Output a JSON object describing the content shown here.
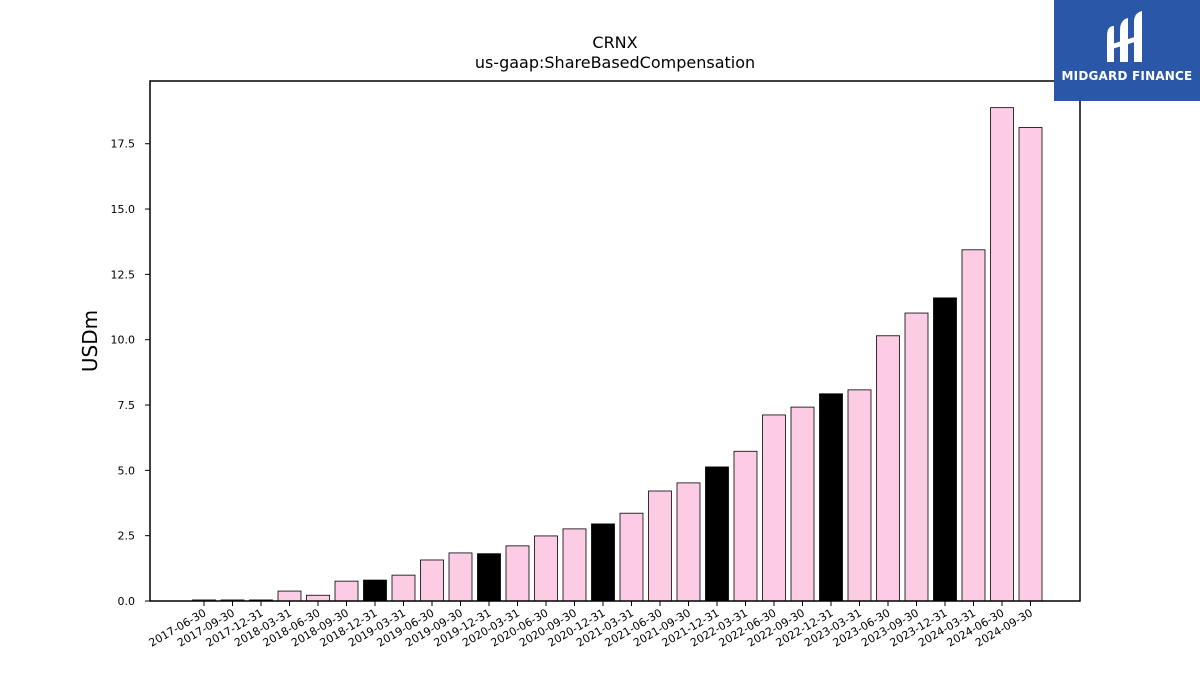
{
  "brand": {
    "name": "MIDGARD FINANCE",
    "bg_color": "#2a57a8"
  },
  "chart_data": {
    "type": "bar",
    "title": "CRNX",
    "subtitle": "us-gaap:ShareBasedCompensation",
    "xlabel": "",
    "ylabel": "USDm",
    "ylim": [
      0,
      19.9
    ],
    "yticks": [
      "0.0",
      "2.5",
      "5.0",
      "7.5",
      "10.0",
      "12.5",
      "15.0",
      "17.5"
    ],
    "ytick_values": [
      0,
      2.5,
      5,
      7.5,
      10,
      12.5,
      15,
      17.5
    ],
    "grid": false,
    "colors": {
      "quarter": "#fccce4",
      "year_end": "#000000",
      "edge": "#000000"
    },
    "categories": [
      "2017-06-30",
      "2017-09-30",
      "2017-12-31",
      "2018-03-31",
      "2018-06-30",
      "2018-09-30",
      "2018-12-31",
      "2019-03-31",
      "2019-06-30",
      "2019-09-30",
      "2019-12-31",
      "2020-03-31",
      "2020-06-30",
      "2020-09-30",
      "2020-12-31",
      "2021-03-31",
      "2021-06-30",
      "2021-09-30",
      "2021-12-31",
      "2022-03-31",
      "2022-06-30",
      "2022-09-30",
      "2022-12-31",
      "2023-03-31",
      "2023-06-30",
      "2023-09-30",
      "2023-12-31",
      "2024-03-31",
      "2024-06-30",
      "2024-09-30"
    ],
    "values": [
      0.04,
      0.04,
      0.04,
      0.38,
      0.22,
      0.76,
      0.8,
      0.99,
      1.57,
      1.84,
      1.81,
      2.11,
      2.49,
      2.76,
      2.95,
      3.36,
      4.21,
      4.52,
      5.13,
      5.73,
      7.12,
      7.42,
      7.93,
      8.08,
      10.15,
      11.02,
      11.6,
      13.44,
      18.88,
      18.12
    ],
    "year_end": [
      false,
      false,
      true,
      false,
      false,
      false,
      true,
      false,
      false,
      false,
      true,
      false,
      false,
      false,
      true,
      false,
      false,
      false,
      true,
      false,
      false,
      false,
      true,
      false,
      false,
      false,
      true,
      false,
      false,
      false
    ]
  }
}
